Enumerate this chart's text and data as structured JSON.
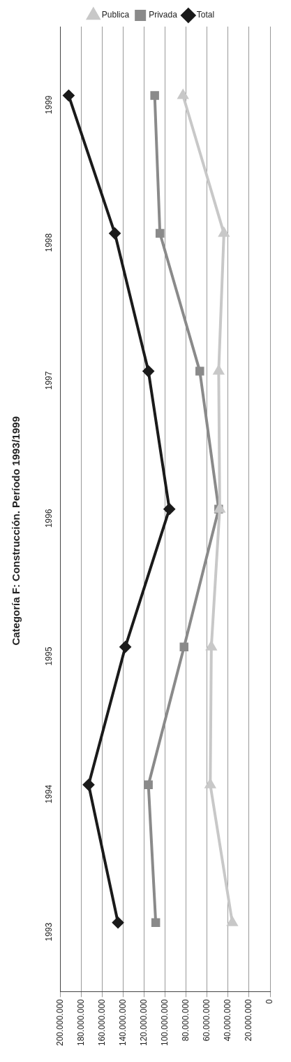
{
  "chart_data": {
    "type": "line",
    "title": "Categoría F: Construcción. Período 1993/1999",
    "orientation": "horizontal",
    "categories": [
      "1999",
      "1998",
      "1997",
      "1996",
      "1995",
      "1994",
      "1993"
    ],
    "series": [
      {
        "name": "Total",
        "color": "#1a1a1a",
        "marker": "diamond",
        "values": [
          192000000,
          148000000,
          116000000,
          96000000,
          138000000,
          173000000,
          145000000
        ]
      },
      {
        "name": "Privada",
        "color": "#8a8a8a",
        "marker": "square",
        "values": [
          110000000,
          105000000,
          67000000,
          49000000,
          82000000,
          116000000,
          109000000
        ]
      },
      {
        "name": "Publica",
        "color": "#c8c8c8",
        "marker": "triangle",
        "values": [
          83000000,
          44000000,
          49000000,
          48000000,
          56000000,
          57000000,
          36000000
        ]
      }
    ],
    "xlim": [
      200000000,
      0
    ],
    "xticks": [
      {
        "value": 200000000,
        "label": "200.000.000"
      },
      {
        "value": 180000000,
        "label": "180.000.000"
      },
      {
        "value": 160000000,
        "label": "160.000.000"
      },
      {
        "value": 140000000,
        "label": "140.000.000"
      },
      {
        "value": 120000000,
        "label": "120.000.000"
      },
      {
        "value": 100000000,
        "label": "100.000.000"
      },
      {
        "value": 80000000,
        "label": "80.000.000"
      },
      {
        "value": 60000000,
        "label": "60.000.000"
      },
      {
        "value": 40000000,
        "label": "40.000.000"
      },
      {
        "value": 20000000,
        "label": "20.000.000"
      },
      {
        "value": 0,
        "label": "0"
      }
    ],
    "grid": "x",
    "legend": "top"
  }
}
